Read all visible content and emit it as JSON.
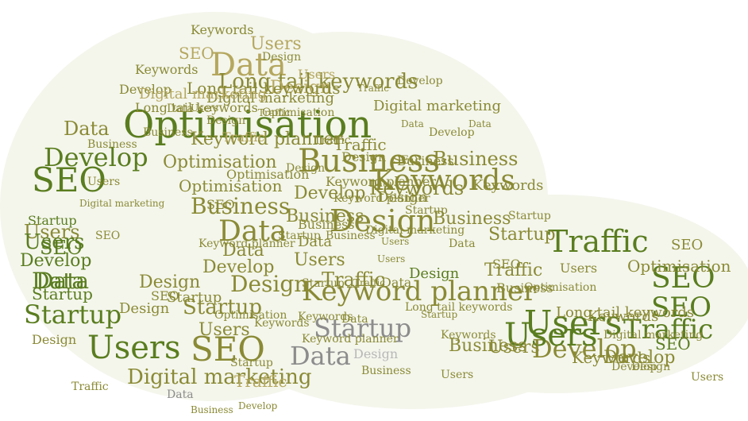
{
  "colors": {
    "dark_green": "#5a7d1f",
    "olive": "#8a8a35",
    "khaki": "#b5a75e",
    "gray": "#8c8c8c",
    "light_gray": "#b8b8b8",
    "shape_fill": "#f4f6ec"
  },
  "words": [
    {
      "text": "Optimisation",
      "color": "dark_green"
    },
    {
      "text": "Business",
      "color": "olive"
    },
    {
      "text": "Keywords",
      "color": "olive"
    },
    {
      "text": "Design",
      "color": "olive"
    },
    {
      "text": "Keyword planner",
      "color": "olive"
    },
    {
      "text": "Startup",
      "color": "gray"
    },
    {
      "text": "Data",
      "color": "gray"
    },
    {
      "text": "Traffic",
      "color": "dark_green"
    },
    {
      "text": "SEO",
      "color": "dark_green"
    },
    {
      "text": "SEO",
      "color": "dark_green"
    },
    {
      "text": "Users",
      "color": "dark_green"
    },
    {
      "text": "Traffic",
      "color": "dark_green"
    },
    {
      "text": "Develop",
      "color": "olive"
    },
    {
      "text": "SEO",
      "color": "dark_green"
    },
    {
      "text": "Users",
      "color": "dark_green"
    },
    {
      "text": "Data",
      "color": "khaki"
    },
    {
      "text": "SEO",
      "color": "olive"
    },
    {
      "text": "Long tail keywords",
      "color": "olive"
    },
    {
      "text": "Business",
      "color": "olive"
    },
    {
      "text": "Data",
      "color": "olive"
    },
    {
      "text": "Business",
      "color": "olive"
    },
    {
      "text": "Users",
      "color": "dark_green"
    },
    {
      "text": "Startup",
      "color": "dark_green"
    },
    {
      "text": "Develop",
      "color": "dark_green"
    },
    {
      "text": "SEO",
      "color": "dark_green"
    },
    {
      "text": "Optimisation",
      "color": "olive"
    },
    {
      "text": "Keywords",
      "color": "olive"
    },
    {
      "text": "Develop",
      "color": "olive"
    },
    {
      "text": "Digital marketing",
      "color": "olive"
    },
    {
      "text": "Design",
      "color": "olive"
    },
    {
      "text": "Users",
      "color": "olive"
    },
    {
      "text": "Data",
      "color": "dark_green"
    },
    {
      "text": "Startup",
      "color": "olive"
    },
    {
      "text": "Traffic",
      "color": "olive"
    },
    {
      "text": "Design",
      "color": "khaki"
    },
    {
      "text": "Business",
      "color": "olive"
    },
    {
      "text": "Users",
      "color": "olive"
    },
    {
      "text": "Data",
      "color": "olive"
    },
    {
      "text": "Long tail keywords",
      "color": "olive"
    },
    {
      "text": "Digital marketing",
      "color": "olive"
    },
    {
      "text": "Keyword planner",
      "color": "olive"
    },
    {
      "text": "Keywords",
      "color": "olive"
    },
    {
      "text": "SEO",
      "color": "khaki"
    },
    {
      "text": "Users",
      "color": "khaki"
    },
    {
      "text": "Develop",
      "color": "olive"
    },
    {
      "text": "Optimisation",
      "color": "olive"
    },
    {
      "text": "Users",
      "color": "olive"
    },
    {
      "text": "Data",
      "color": "olive"
    },
    {
      "text": "Startup",
      "color": "olive"
    },
    {
      "text": "Data",
      "color": "dark_green"
    },
    {
      "text": "Users",
      "color": "dark_green"
    },
    {
      "text": "Develop",
      "color": "dark_green"
    },
    {
      "text": "Startup",
      "color": "dark_green"
    },
    {
      "text": "Keywords",
      "color": "olive"
    },
    {
      "text": "Traffic",
      "color": "olive"
    },
    {
      "text": "Develop",
      "color": "olive"
    },
    {
      "text": "Long tail keywords",
      "color": "olive"
    },
    {
      "text": "Users",
      "color": "olive"
    },
    {
      "text": "Business",
      "color": "olive"
    },
    {
      "text": "Data",
      "color": "olive"
    },
    {
      "text": "Design",
      "color": "olive"
    },
    {
      "text": "Keyword planner",
      "color": "olive"
    },
    {
      "text": "Business",
      "color": "olive"
    },
    {
      "text": "Design",
      "color": "dark_green"
    },
    {
      "text": "SEO",
      "color": "olive"
    },
    {
      "text": "SEO",
      "color": "olive"
    },
    {
      "text": "Business",
      "color": "olive"
    },
    {
      "text": "Users",
      "color": "olive"
    },
    {
      "text": "SEO",
      "color": "dark_green"
    },
    {
      "text": "Design",
      "color": "light_gray"
    },
    {
      "text": "Startup",
      "color": "olive"
    },
    {
      "text": "Digital marketing",
      "color": "olive"
    },
    {
      "text": "Keywords",
      "color": "olive"
    },
    {
      "text": "Traffic",
      "color": "olive"
    },
    {
      "text": "Traffic",
      "color": "olive"
    },
    {
      "text": "Design",
      "color": "olive"
    },
    {
      "text": "Digital marketing",
      "color": "olive"
    },
    {
      "text": "Design",
      "color": "olive"
    },
    {
      "text": "Traffic",
      "color": "khaki"
    },
    {
      "text": "Startup",
      "color": "olive"
    },
    {
      "text": "Keyword planner",
      "color": "olive"
    },
    {
      "text": "Data",
      "color": "olive"
    },
    {
      "text": "Keywords",
      "color": "olive"
    },
    {
      "text": "Optimisation",
      "color": "olive"
    },
    {
      "text": "Business",
      "color": "olive"
    },
    {
      "text": "Design",
      "color": "olive"
    },
    {
      "text": "Long tail keywords",
      "color": "olive"
    },
    {
      "text": "Users",
      "color": "khaki"
    },
    {
      "text": "Traffic",
      "color": "khaki"
    },
    {
      "text": "Users",
      "color": "olive"
    },
    {
      "text": "Develop",
      "color": "olive"
    },
    {
      "text": "Optimisation",
      "color": "olive"
    },
    {
      "text": "Data",
      "color": "olive"
    },
    {
      "text": "Business",
      "color": "olive"
    },
    {
      "text": "Keywords",
      "color": "olive"
    },
    {
      "text": "Startup",
      "color": "olive"
    },
    {
      "text": "Design",
      "color": "olive"
    },
    {
      "text": "Startup",
      "color": "dark_green"
    },
    {
      "text": "Business",
      "color": "olive"
    },
    {
      "text": "Optimisation",
      "color": "olive"
    },
    {
      "text": "Startup",
      "color": "olive"
    },
    {
      "text": "Data",
      "color": "olive"
    },
    {
      "text": "Digital marketing",
      "color": "khaki"
    },
    {
      "text": "Keywords",
      "color": "olive"
    },
    {
      "text": "Business",
      "color": "olive"
    },
    {
      "text": "Users",
      "color": "olive"
    },
    {
      "text": "Design",
      "color": "olive"
    },
    {
      "text": "Develop",
      "color": "olive"
    },
    {
      "text": "SEO",
      "color": "olive"
    },
    {
      "text": "Optimisation",
      "color": "olive"
    },
    {
      "text": "Startup",
      "color": "olive"
    },
    {
      "text": "Traffic",
      "color": "olive"
    },
    {
      "text": "Data",
      "color": "gray"
    },
    {
      "text": "SEO",
      "color": "olive"
    },
    {
      "text": "Keyword planner",
      "color": "olive"
    },
    {
      "text": "SEO",
      "color": "olive"
    },
    {
      "text": "Develop",
      "color": "olive"
    },
    {
      "text": "Users",
      "color": "olive"
    },
    {
      "text": "Traffic",
      "color": "olive"
    },
    {
      "text": "Data",
      "color": "olive"
    },
    {
      "text": "Keywords",
      "color": "olive"
    },
    {
      "text": "Design",
      "color": "olive"
    },
    {
      "text": "Business",
      "color": "olive"
    },
    {
      "text": "Digital marketing",
      "color": "olive"
    },
    {
      "text": "Develop",
      "color": "olive"
    },
    {
      "text": "Design",
      "color": "olive"
    },
    {
      "text": "Startup",
      "color": "olive"
    },
    {
      "text": "Keyword planner",
      "color": "olive"
    },
    {
      "text": "Data",
      "color": "olive"
    },
    {
      "text": "Traffic",
      "color": "olive"
    },
    {
      "text": "Business",
      "color": "olive"
    },
    {
      "text": "Long tail keywords",
      "color": "olive"
    },
    {
      "text": "Keywords",
      "color": "olive"
    },
    {
      "text": "Users",
      "color": "olive"
    },
    {
      "text": "Startup",
      "color": "olive"
    },
    {
      "text": "Data",
      "color": "olive"
    },
    {
      "text": "Optimisation",
      "color": "olive"
    },
    {
      "text": "SEO",
      "color": "olive"
    },
    {
      "text": "Traffic",
      "color": "olive"
    },
    {
      "text": "Design",
      "color": "olive"
    },
    {
      "text": "Users",
      "color": "olive"
    },
    {
      "text": "Develop",
      "color": "olive"
    },
    {
      "text": "Business",
      "color": "olive"
    },
    {
      "text": "Digital marketing",
      "color": "olive"
    },
    {
      "text": "Data",
      "color": "olive"
    },
    {
      "text": "Users",
      "color": "olive"
    },
    {
      "text": "Startup",
      "color": "olive"
    }
  ]
}
